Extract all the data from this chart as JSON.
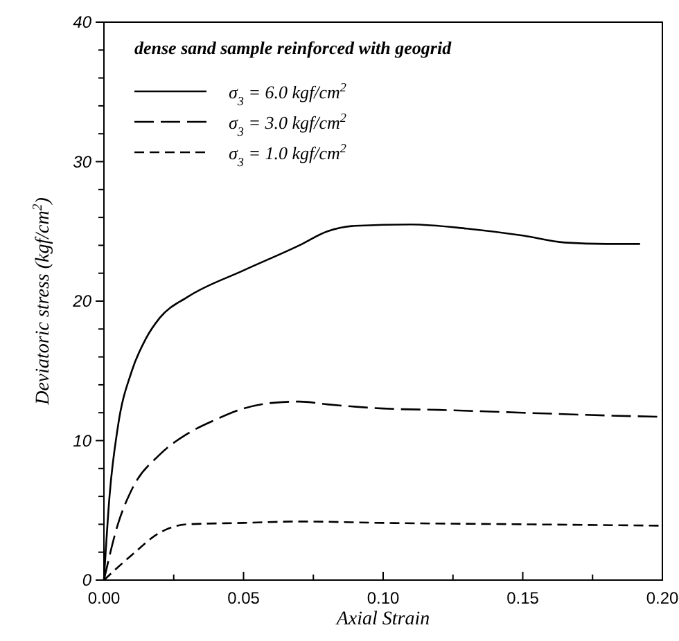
{
  "chart_data": {
    "type": "line",
    "xlabel": "Axial Strain",
    "ylabel": "Deviatoric stress (kgf/cm$^{2}$)",
    "annotations": [
      "dense sand sample reinforced with geogrid"
    ],
    "xlim": [
      0,
      0.2
    ],
    "ylim": [
      0,
      40
    ],
    "xticks": [
      {
        "value": 0,
        "label": "0.00"
      },
      {
        "value": 0.025,
        "label": null
      },
      {
        "value": 0.05,
        "label": "0.05"
      },
      {
        "value": 0.075,
        "label": null
      },
      {
        "value": 0.1,
        "label": "0.10"
      },
      {
        "value": 0.125,
        "label": null
      },
      {
        "value": 0.15,
        "label": "0.15"
      },
      {
        "value": 0.175,
        "label": null
      },
      {
        "value": 0.2,
        "label": "0.20"
      }
    ],
    "yticks": [
      0,
      {
        "value": 2,
        "label": null
      },
      {
        "value": 4,
        "label": null
      },
      {
        "value": 6,
        "label": null
      },
      {
        "value": 8,
        "label": null
      },
      10,
      {
        "value": 12,
        "label": null
      },
      {
        "value": 14,
        "label": null
      },
      {
        "value": 16,
        "label": null
      },
      {
        "value": 18,
        "label": null
      },
      20,
      {
        "value": 22,
        "label": null
      },
      {
        "value": 24,
        "label": null
      },
      {
        "value": 26,
        "label": null
      },
      {
        "value": 28,
        "label": null
      },
      30,
      {
        "value": 32,
        "label": null
      },
      {
        "value": 34,
        "label": null
      },
      {
        "value": 36,
        "label": null
      },
      {
        "value": 38,
        "label": null
      },
      40
    ],
    "grid": false,
    "legend": "top left",
    "marker": "none",
    "series": [
      {
        "name": "σ$_{3}$ = 6.0 kgf/cm$^{2}$",
        "color": "#000000",
        "line_style": "solid",
        "x": [
          0,
          0.002,
          0.005,
          0.01,
          0.015,
          0.02,
          0.03,
          0.05,
          0.07,
          0.08,
          0.09,
          0.11,
          0.13,
          0.15,
          0.165,
          0.18,
          0.192
        ],
        "values": [
          0,
          6,
          11,
          15,
          17.3,
          18.8,
          20.3,
          22.2,
          24,
          25,
          25.4,
          25.5,
          25.2,
          24.7,
          24.2,
          24.1,
          24.1
        ]
      },
      {
        "name": "σ$_{3}$ = 3.0 kgf/cm$^{2}$",
        "color": "#000000",
        "line_style": "dashed",
        "x": [
          0,
          0.005,
          0.01,
          0.02,
          0.03,
          0.04,
          0.05,
          0.06,
          0.07,
          0.08,
          0.1,
          0.12,
          0.15,
          0.18,
          0.2
        ],
        "values": [
          0,
          4,
          6.5,
          9,
          10.5,
          11.5,
          12.3,
          12.7,
          12.8,
          12.6,
          12.3,
          12.2,
          12,
          11.8,
          11.7
        ]
      },
      {
        "name": "σ$_{3}$ = 1.0 kgf/cm$^{2}$",
        "color": "#000000",
        "line_style": "dashed",
        "x": [
          0,
          0.01,
          0.02,
          0.03,
          0.05,
          0.07,
          0.1,
          0.15,
          0.2
        ],
        "values": [
          0,
          1.8,
          3.4,
          4,
          4.1,
          4.2,
          4.1,
          4,
          3.9
        ]
      }
    ]
  }
}
